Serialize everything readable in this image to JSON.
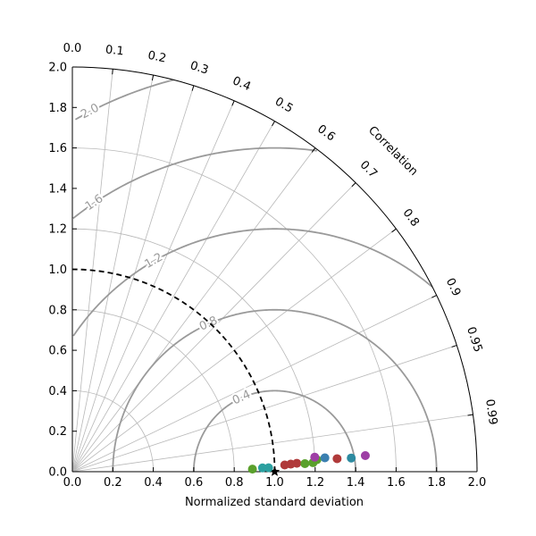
{
  "chart_data": {
    "type": "scatter",
    "subtype": "taylor-diagram",
    "title": "",
    "xlabel": "Normalized standard deviation",
    "correlation_label": "Correlation",
    "std_range": [
      0,
      2.0
    ],
    "std_ticks": [
      "0.0",
      "0.2",
      "0.4",
      "0.6",
      "0.8",
      "1.0",
      "1.2",
      "1.4",
      "1.6",
      "1.8",
      "2.0"
    ],
    "correlation_ticks": [
      {
        "value": 0.0,
        "label": "0.0"
      },
      {
        "value": 0.1,
        "label": "0.1"
      },
      {
        "value": 0.2,
        "label": "0.2"
      },
      {
        "value": 0.3,
        "label": "0.3"
      },
      {
        "value": 0.4,
        "label": "0.4"
      },
      {
        "value": 0.5,
        "label": "0.5"
      },
      {
        "value": 0.6,
        "label": "0.6"
      },
      {
        "value": 0.7,
        "label": "0.7"
      },
      {
        "value": 0.8,
        "label": "0.8"
      },
      {
        "value": 0.9,
        "label": "0.9"
      },
      {
        "value": 0.95,
        "label": "0.95"
      },
      {
        "value": 0.99,
        "label": "0.99"
      }
    ],
    "std_arcs": [
      0.4,
      0.8,
      1.2,
      1.6,
      2.0
    ],
    "reference": {
      "std": 1.0,
      "correlation": 1.0,
      "marker": "star"
    },
    "rms_contours": [
      {
        "value": 0.4,
        "label": "0.4"
      },
      {
        "value": 0.8,
        "label": "0.8"
      },
      {
        "value": 1.2,
        "label": "1.2"
      },
      {
        "value": 1.6,
        "label": "1.6"
      },
      {
        "value": 2.0,
        "label": "2.0"
      }
    ],
    "grid": true,
    "points": [
      {
        "std": 0.89,
        "correlation": 0.9999,
        "color": "#5aa02c"
      },
      {
        "std": 0.94,
        "correlation": 0.9998,
        "color": "#2ca0a0"
      },
      {
        "std": 0.97,
        "correlation": 0.9998,
        "color": "#2ca0a0"
      },
      {
        "std": 1.05,
        "correlation": 0.9995,
        "color": "#b03a3a"
      },
      {
        "std": 1.08,
        "correlation": 0.9994,
        "color": "#b03a3a"
      },
      {
        "std": 1.11,
        "correlation": 0.9993,
        "color": "#b03a3a"
      },
      {
        "std": 1.15,
        "correlation": 0.9994,
        "color": "#5aa02c"
      },
      {
        "std": 1.19,
        "correlation": 0.9993,
        "color": "#5aa02c"
      },
      {
        "std": 1.21,
        "correlation": 0.9988,
        "color": "#5aa02c"
      },
      {
        "std": 1.2,
        "correlation": 0.9982,
        "color": "#9e3fa5"
      },
      {
        "std": 1.25,
        "correlation": 0.9985,
        "color": "#3a7fb0"
      },
      {
        "std": 1.31,
        "correlation": 0.9988,
        "color": "#b03a3a"
      },
      {
        "std": 1.38,
        "correlation": 0.9988,
        "color": "#2c8aa0"
      },
      {
        "std": 1.45,
        "correlation": 0.9985,
        "color": "#9e3fa5"
      }
    ]
  }
}
